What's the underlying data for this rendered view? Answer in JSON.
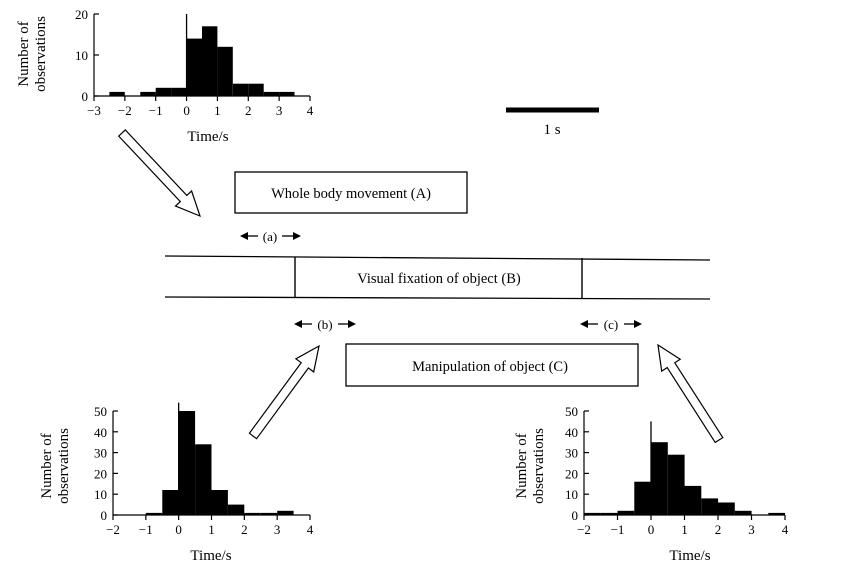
{
  "chart_data": [
    {
      "type": "bar",
      "xlabel": "Time/s",
      "ylabel_line1": "Number of",
      "ylabel_line2": "observations",
      "xlim": [
        -3,
        4
      ],
      "ylim": [
        0,
        20
      ],
      "xticks": [
        "−3",
        "−2",
        "−1",
        "0",
        "1",
        "2",
        "3",
        "4"
      ],
      "yticks": [
        "0",
        "10",
        "20"
      ],
      "bin_width": 0.5,
      "bin_starts": [
        -2.5,
        -2.0,
        -1.5,
        -1.0,
        -0.5,
        0.0,
        0.5,
        1.0,
        1.5,
        2.0,
        2.5,
        3.0,
        3.5
      ],
      "values": [
        1,
        0,
        1,
        2,
        2,
        14,
        17,
        12,
        3,
        3,
        1,
        1,
        0
      ],
      "zero_line_top": 20
    },
    {
      "type": "bar",
      "xlabel": "Time/s",
      "ylabel_line1": "Number of",
      "ylabel_line2": "observations",
      "xlim": [
        -2,
        4
      ],
      "ylim": [
        0,
        50
      ],
      "xticks": [
        "−2",
        "−1",
        "0",
        "1",
        "2",
        "3",
        "4"
      ],
      "yticks": [
        "0",
        "10",
        "20",
        "30",
        "40",
        "50"
      ],
      "bin_width": 0.5,
      "bin_starts": [
        -1.0,
        -0.5,
        0.0,
        0.5,
        1.0,
        1.5,
        2.0,
        2.5,
        3.0
      ],
      "values": [
        1,
        12,
        50,
        34,
        12,
        5,
        1,
        1,
        2
      ],
      "zero_line_top": 54
    },
    {
      "type": "bar",
      "xlabel": "Time/s",
      "ylabel_line1": "Number of",
      "ylabel_line2": "observations",
      "xlim": [
        -2,
        4
      ],
      "ylim": [
        0,
        50
      ],
      "xticks": [
        "−2",
        "−1",
        "0",
        "1",
        "2",
        "3",
        "4"
      ],
      "yticks": [
        "0",
        "10",
        "20",
        "30",
        "40",
        "50"
      ],
      "bin_width": 0.5,
      "bin_starts": [
        -2.0,
        -1.5,
        -1.0,
        -0.5,
        0.0,
        0.5,
        1.0,
        1.5,
        2.0,
        2.5,
        3.0,
        3.5
      ],
      "values": [
        1,
        1,
        2,
        16,
        35,
        29,
        14,
        8,
        6,
        2,
        0,
        1
      ],
      "zero_line_top": 45
    }
  ],
  "scale_bar": {
    "label": "1 s"
  },
  "boxes": {
    "a": "Whole body movement (A)",
    "b": "Visual fixation of object (B)",
    "c": "Manipulation of object (C)"
  },
  "intervals": {
    "a": "(a)",
    "b": "(b)",
    "c": "(c)"
  }
}
